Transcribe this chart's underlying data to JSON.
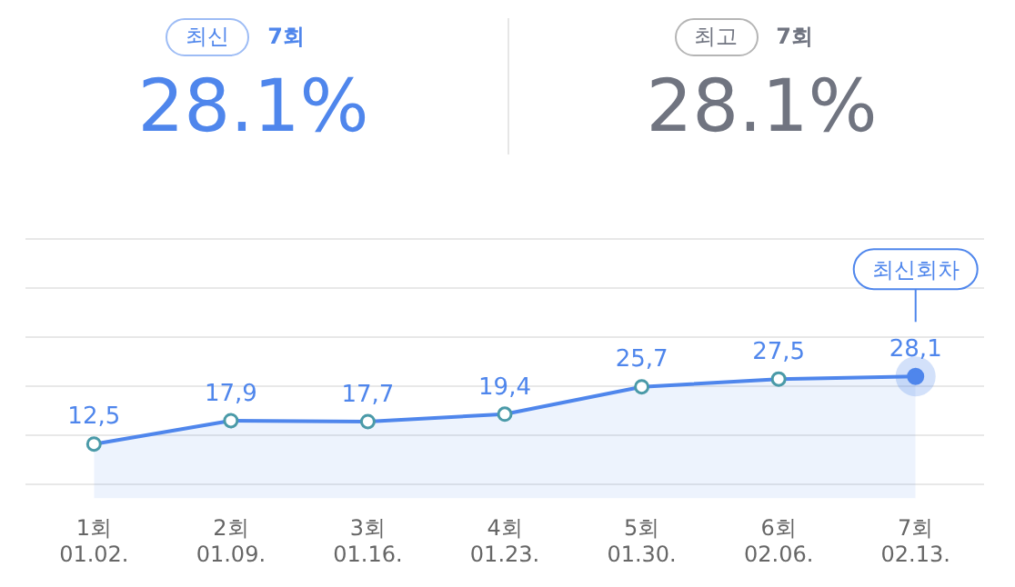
{
  "chart_data": [
    {
      "type": "other",
      "annotations": [
        "최신",
        "7회",
        "28.1%",
        "최고",
        "7회",
        "28.1%"
      ]
    },
    {
      "type": "area",
      "categories": [
        "1회 01.02.",
        "2회 01.09.",
        "3회 01.16.",
        "4회 01.23.",
        "5회 01.30.",
        "6회 02.06.",
        "7회 02.13."
      ],
      "series": [
        {
          "color": "#4f86ec",
          "values": [
            12.5,
            17.9,
            17.7,
            19.4,
            25.7,
            27.5,
            28.1
          ],
          "value_labels": [
            "12,5",
            "17,9",
            "17,7",
            "19,4",
            "25,7",
            "27,5",
            "28,1"
          ]
        }
      ],
      "tick_labels": "x",
      "marker": "circle",
      "annotations": [
        "최신회차"
      ]
    }
  ]
}
